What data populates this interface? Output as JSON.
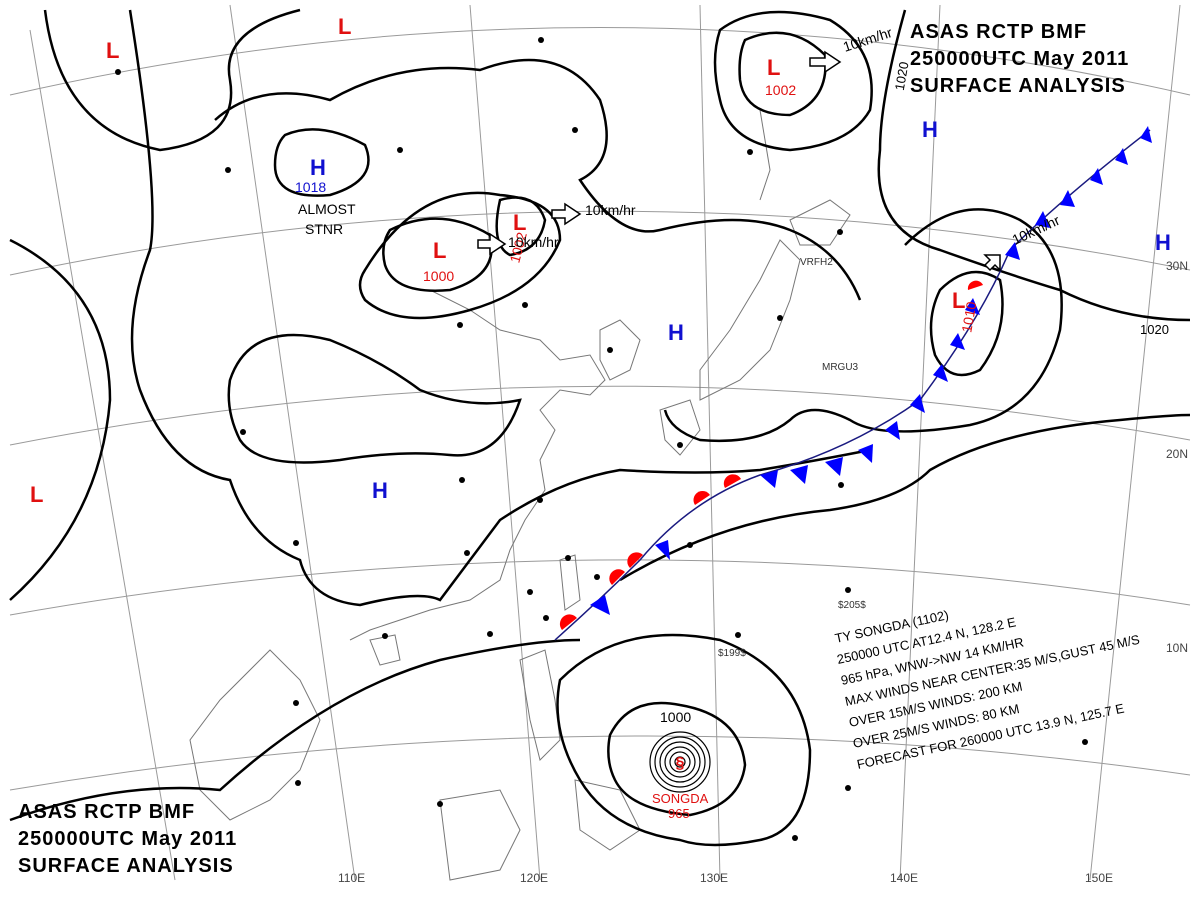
{
  "title_top": [
    "ASAS    RCTP    BMF",
    "250000UTC    May    2011",
    "SURFACE  ANALYSIS"
  ],
  "title_bottom": [
    "ASAS    RCTP    BMF",
    "250000UTC    May    2011",
    "SURFACE  ANALYSIS"
  ],
  "longitude_labels": [
    "110E",
    "120E",
    "130E",
    "140E",
    "150E"
  ],
  "latitude_labels": [
    "30N",
    "20N",
    "10N"
  ],
  "isobar_labels": [
    "1020",
    "1020",
    "1000"
  ],
  "pressure_centers": [
    {
      "type": "H",
      "value": "1018"
    },
    {
      "type": "L",
      "value": "1000"
    },
    {
      "type": "L",
      "value": "1002"
    },
    {
      "type": "L",
      "value": "1002"
    },
    {
      "type": "L",
      "value": "1010"
    },
    {
      "type": "L",
      "value": ""
    },
    {
      "type": "L",
      "value": ""
    },
    {
      "type": "L",
      "value": ""
    },
    {
      "type": "H",
      "value": ""
    },
    {
      "type": "H",
      "value": ""
    },
    {
      "type": "H",
      "value": ""
    },
    {
      "type": "H",
      "value": ""
    }
  ],
  "movements": [
    "10km/hr",
    "10km/hr",
    "10km/hr",
    "10km/hr"
  ],
  "stationary_note": [
    "ALMOST",
    "STNR"
  ],
  "typhoon": {
    "name": "SONGDA",
    "pressure": "965",
    "info": [
      "TY  SONGDA  (1102)",
      "250000 UTC  AT12.4 N, 128.2 E",
      "965 hPa, WNW->NW  14 KM/HR",
      "MAX WINDS NEAR CENTER:35 M/S,GUST 45 M/S",
      "OVER 15M/S WINDS: 200 KM",
      "OVER 25M/S WINDS: 80 KM",
      "FORECAST FOR 260000 UTC 13.9 N, 125.7 E"
    ]
  },
  "station_codes": [
    "VRFH2",
    "MRGU3",
    "$205$",
    "$199$"
  ],
  "colors": {
    "high": "#1010d0",
    "low": "#e01010",
    "isobar": "#000000",
    "grid": "#808080",
    "coast": "#707070",
    "cold_front": "#0000ff",
    "warm_front": "#ff0000"
  }
}
